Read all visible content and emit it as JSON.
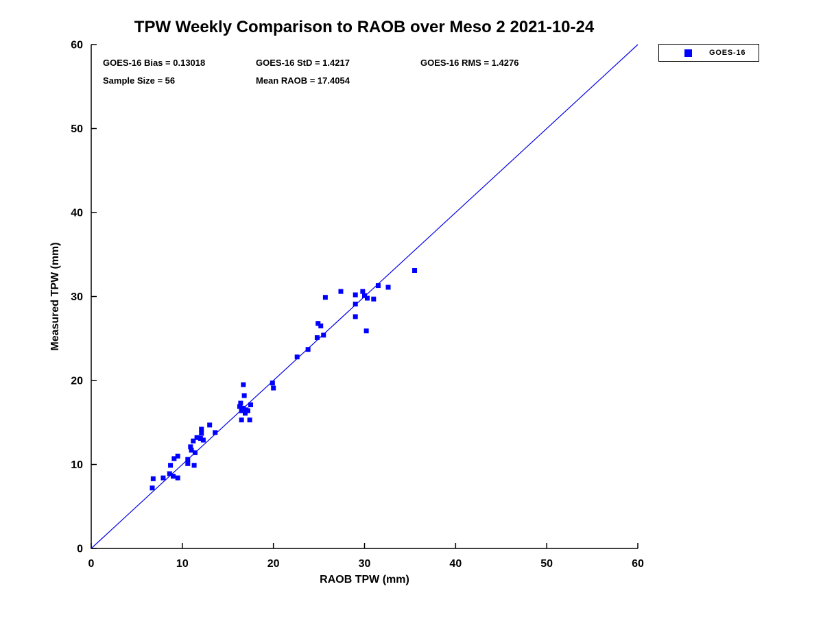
{
  "title": "TPW Weekly Comparison to RAOB over Meso 2 2021-10-24",
  "stats": {
    "bias": "GOES-16 Bias = 0.13018",
    "std": "GOES-16 StD = 1.4217",
    "rms": "GOES-16 RMS = 1.4276",
    "sample_size": "Sample Size = 56",
    "mean_raob": "Mean RAOB = 17.4054"
  },
  "legend": {
    "position": "top-right-outside",
    "entries": [
      {
        "label": "GOES-16",
        "marker": "square",
        "marker_color": "#0000ff"
      }
    ]
  },
  "colors": {
    "axis": "#000000",
    "text": "#000000",
    "marker_blue": "#0000ff",
    "line_blue": "#0000e6",
    "background": "#ffffff"
  },
  "chart_data": {
    "type": "scatter",
    "title": "TPW Weekly Comparison to RAOB over Meso 2 2021-10-24",
    "xlabel": "RAOB TPW (mm)",
    "ylabel": "Measured TPW (mm)",
    "xlim": [
      0,
      60
    ],
    "ylim": [
      0,
      60
    ],
    "xticks": [
      0,
      10,
      20,
      30,
      40,
      50,
      60
    ],
    "yticks": [
      0,
      10,
      20,
      30,
      40,
      50,
      60
    ],
    "grid": false,
    "legend_position": "top-right-outside",
    "reference_line": {
      "name": "identity-line",
      "from": [
        0,
        0
      ],
      "to": [
        60,
        60
      ],
      "color": "#0000e6"
    },
    "series": [
      {
        "name": "GOES-16",
        "marker": "square",
        "marker_size": 7,
        "color": "#0000ff",
        "points": [
          [
            6.7,
            7.2
          ],
          [
            6.8,
            8.3
          ],
          [
            7.9,
            8.4
          ],
          [
            8.6,
            8.9
          ],
          [
            8.7,
            9.9
          ],
          [
            9.0,
            8.6
          ],
          [
            9.5,
            8.4
          ],
          [
            9.1,
            10.7
          ],
          [
            9.5,
            11.0
          ],
          [
            10.6,
            10.1
          ],
          [
            10.6,
            10.6
          ],
          [
            11.3,
            9.9
          ],
          [
            11.0,
            11.7
          ],
          [
            11.4,
            11.4
          ],
          [
            10.9,
            12.1
          ],
          [
            11.2,
            12.8
          ],
          [
            11.6,
            13.2
          ],
          [
            12.0,
            13.1
          ],
          [
            12.1,
            13.7
          ],
          [
            12.1,
            14.2
          ],
          [
            12.3,
            12.9
          ],
          [
            13.0,
            14.7
          ],
          [
            13.6,
            13.8
          ],
          [
            16.3,
            16.9
          ],
          [
            16.5,
            16.4
          ],
          [
            16.7,
            16.7
          ],
          [
            17.0,
            16.5
          ],
          [
            17.2,
            16.4
          ],
          [
            17.5,
            17.1
          ],
          [
            16.5,
            15.3
          ],
          [
            17.4,
            15.3
          ],
          [
            16.8,
            18.2
          ],
          [
            16.7,
            19.5
          ],
          [
            16.9,
            16.1
          ],
          [
            16.4,
            17.3
          ],
          [
            19.9,
            19.7
          ],
          [
            20.0,
            19.1
          ],
          [
            22.6,
            22.8
          ],
          [
            23.8,
            23.7
          ],
          [
            24.8,
            25.1
          ],
          [
            25.5,
            25.4
          ],
          [
            25.2,
            26.5
          ],
          [
            24.9,
            26.8
          ],
          [
            25.7,
            29.9
          ],
          [
            27.4,
            30.6
          ],
          [
            29.0,
            30.2
          ],
          [
            29.8,
            30.6
          ],
          [
            30.0,
            30.1
          ],
          [
            30.3,
            29.8
          ],
          [
            31.0,
            29.7
          ],
          [
            31.5,
            31.3
          ],
          [
            32.6,
            31.1
          ],
          [
            29.0,
            29.1
          ],
          [
            29.0,
            27.6
          ],
          [
            30.2,
            25.9
          ],
          [
            35.5,
            33.1
          ]
        ]
      }
    ]
  }
}
